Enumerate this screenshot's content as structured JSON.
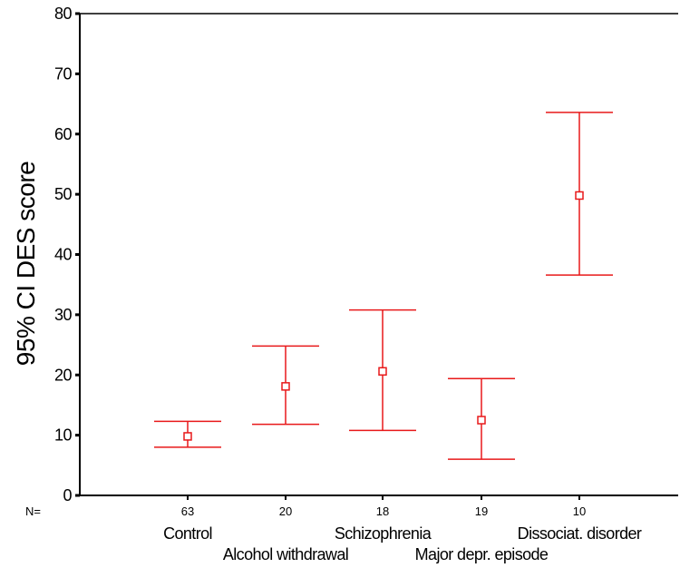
{
  "chart_data": {
    "type": "errorbar",
    "ylabel": "95% CI DES score",
    "xlabel": "",
    "ylim": [
      0,
      80
    ],
    "yticks": [
      0,
      10,
      20,
      30,
      40,
      50,
      60,
      70,
      80
    ],
    "n_prefix": "N=",
    "categories": [
      "Control",
      "Alcohol withdrawal",
      "Schizophrenia",
      "Major depr. episode",
      "Dissociat. disorder"
    ],
    "n": [
      "63",
      "20",
      "18",
      "19",
      "10"
    ],
    "series": [
      {
        "mean": [
          9.8,
          18.1,
          20.6,
          12.5,
          49.8
        ],
        "lower": [
          8.0,
          11.8,
          10.8,
          6.0,
          36.6
        ],
        "upper": [
          12.3,
          24.8,
          30.8,
          19.4,
          63.6
        ]
      }
    ],
    "color": "#e8191a",
    "grid": false,
    "legend": "none"
  }
}
